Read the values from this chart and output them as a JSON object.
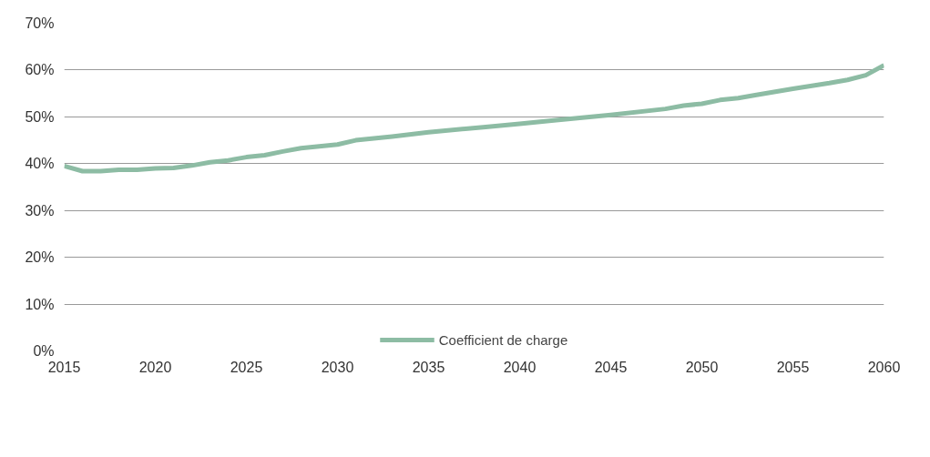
{
  "chart_data": {
    "type": "line",
    "x": [
      2015,
      2016,
      2017,
      2018,
      2019,
      2020,
      2021,
      2022,
      2023,
      2024,
      2025,
      2026,
      2027,
      2028,
      2029,
      2030,
      2031,
      2032,
      2033,
      2035,
      2038,
      2040,
      2042,
      2045,
      2048,
      2049,
      2050,
      2051,
      2052,
      2053,
      2055,
      2057,
      2058,
      2059,
      2060
    ],
    "series": [
      {
        "name": "Coefficient de charge",
        "color": "#8dbca4",
        "values": [
          39.5,
          38.4,
          38.4,
          38.7,
          38.7,
          39.0,
          39.1,
          39.6,
          40.3,
          40.7,
          41.4,
          41.8,
          42.6,
          43.3,
          43.7,
          44.1,
          45.0,
          45.4,
          45.8,
          46.7,
          47.8,
          48.5,
          49.3,
          50.4,
          51.7,
          52.4,
          52.8,
          53.6,
          54.0,
          54.7,
          56.0,
          57.2,
          57.9,
          58.9,
          61.0
        ]
      }
    ],
    "xlim": [
      2015,
      2060
    ],
    "xticks": [
      2015,
      2020,
      2025,
      2030,
      2035,
      2040,
      2045,
      2050,
      2055,
      2060
    ],
    "ylim": [
      0,
      70
    ],
    "yticks": [
      {
        "value": 0,
        "label": "0%"
      },
      {
        "value": 10,
        "label": "10%"
      },
      {
        "value": 20,
        "label": "20%"
      },
      {
        "value": 30,
        "label": "30%"
      },
      {
        "value": 40,
        "label": "40%"
      },
      {
        "value": 50,
        "label": "50%"
      },
      {
        "value": 60,
        "label": "60%"
      },
      {
        "value": 70,
        "label": "70%"
      }
    ],
    "grid": "y",
    "legend": "bottom",
    "marker": "none",
    "line_style": "solid"
  }
}
